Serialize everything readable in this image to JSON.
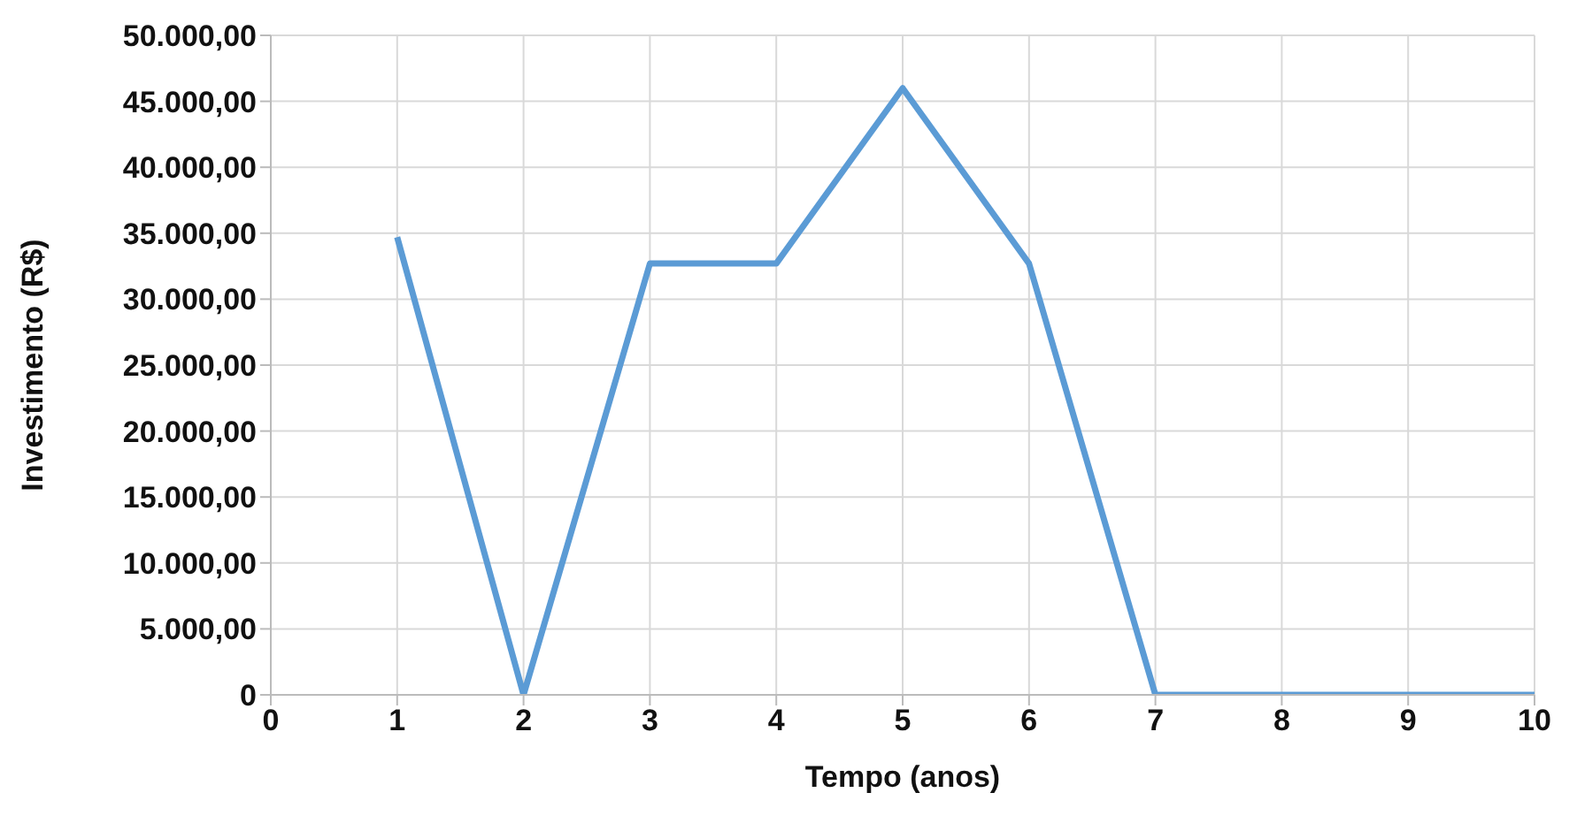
{
  "chart_data": {
    "type": "line",
    "xlabel": "Tempo (anos)",
    "ylabel": "Investimento (R$)",
    "x": [
      1,
      2,
      3,
      4,
      5,
      6,
      7,
      8,
      9,
      10
    ],
    "series": [
      {
        "color": "#5b9bd5",
        "values": [
          34700,
          0,
          32700,
          32700,
          46000,
          32700,
          0,
          0,
          0,
          0
        ]
      }
    ],
    "xlim": [
      0,
      10
    ],
    "xticks": [
      0,
      1,
      2,
      3,
      4,
      5,
      6,
      7,
      8,
      9,
      10
    ],
    "ylim": [
      0,
      50000
    ],
    "yticks": [
      {
        "value": 0,
        "label": "0"
      },
      {
        "value": 5000,
        "label": "5.000,00"
      },
      {
        "value": 10000,
        "label": "10.000,00"
      },
      {
        "value": 15000,
        "label": "15.000,00"
      },
      {
        "value": 20000,
        "label": "20.000,00"
      },
      {
        "value": 25000,
        "label": "25.000,00"
      },
      {
        "value": 30000,
        "label": "30.000,00"
      },
      {
        "value": 35000,
        "label": "35.000,00"
      },
      {
        "value": 40000,
        "label": "40.000,00"
      },
      {
        "value": 45000,
        "label": "45.000,00"
      },
      {
        "value": 50000,
        "label": "50.000,00"
      }
    ],
    "grid": true,
    "marker": "none",
    "line_style": "solid"
  }
}
